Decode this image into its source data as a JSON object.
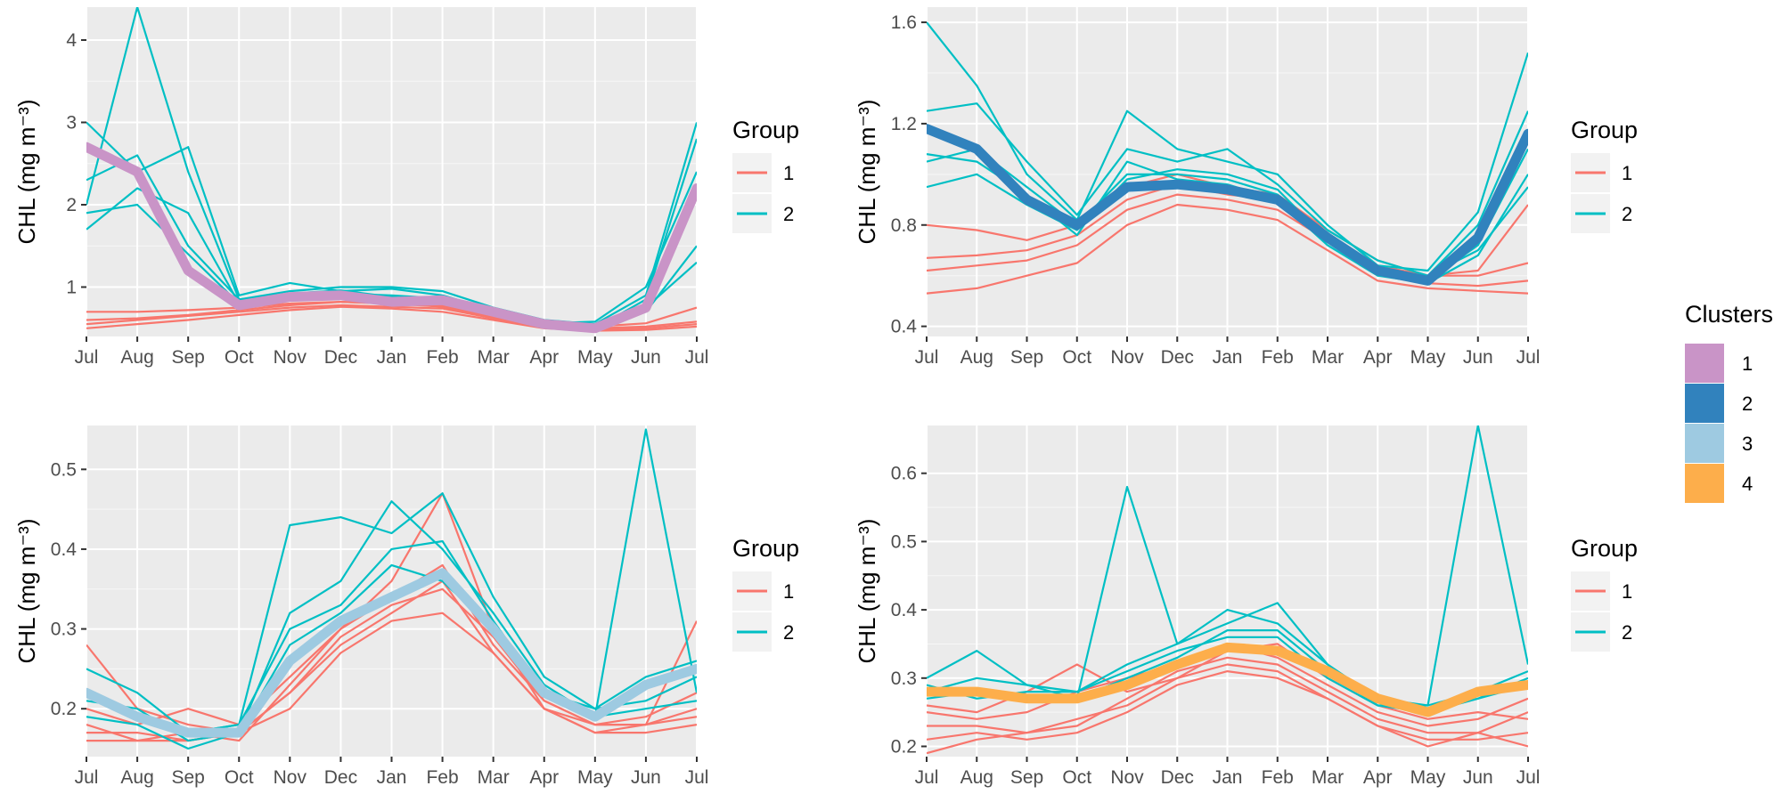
{
  "chart_data": [
    {
      "type": "line",
      "panel": "top-left",
      "ylabel": "CHL (mg m⁻³)",
      "x_categories": [
        "Jul",
        "Aug",
        "Sep",
        "Oct",
        "Nov",
        "Dec",
        "Jan",
        "Feb",
        "Mar",
        "Apr",
        "May",
        "Jun",
        "Jul"
      ],
      "ylim": [
        0.4,
        4.4
      ],
      "yticks": [
        1,
        2,
        3,
        4
      ],
      "cluster": "1",
      "cluster_mean": [
        2.7,
        2.4,
        1.2,
        0.78,
        0.88,
        0.9,
        0.82,
        0.84,
        0.7,
        0.55,
        0.5,
        0.75,
        2.2
      ],
      "series": [
        {
          "group": "1",
          "values": [
            0.55,
            0.6,
            0.65,
            0.7,
            0.75,
            0.78,
            0.76,
            0.74,
            0.62,
            0.52,
            0.48,
            0.5,
            0.55
          ]
        },
        {
          "group": "1",
          "values": [
            0.6,
            0.62,
            0.66,
            0.72,
            0.78,
            0.82,
            0.8,
            0.76,
            0.64,
            0.54,
            0.5,
            0.52,
            0.58
          ]
        },
        {
          "group": "1",
          "values": [
            0.5,
            0.55,
            0.6,
            0.66,
            0.72,
            0.76,
            0.74,
            0.7,
            0.6,
            0.5,
            0.47,
            0.48,
            0.52
          ]
        },
        {
          "group": "1",
          "values": [
            0.7,
            0.7,
            0.72,
            0.75,
            0.8,
            0.82,
            0.8,
            0.78,
            0.66,
            0.56,
            0.52,
            0.56,
            0.75
          ]
        },
        {
          "group": "2",
          "values": [
            2.0,
            4.4,
            2.4,
            0.85,
            0.95,
            1.0,
            1.0,
            0.95,
            0.75,
            0.6,
            0.55,
            0.9,
            3.0
          ]
        },
        {
          "group": "2",
          "values": [
            3.0,
            2.4,
            2.7,
            0.9,
            1.05,
            0.95,
            0.98,
            0.9,
            0.72,
            0.56,
            0.58,
            1.0,
            2.4
          ]
        },
        {
          "group": "2",
          "values": [
            1.7,
            2.2,
            1.9,
            0.8,
            0.9,
            0.92,
            0.9,
            0.86,
            0.7,
            0.55,
            0.52,
            0.7,
            1.5
          ]
        },
        {
          "group": "2",
          "values": [
            2.3,
            2.6,
            1.5,
            0.85,
            0.92,
            0.96,
            0.88,
            0.82,
            0.68,
            0.58,
            0.5,
            0.85,
            2.8
          ]
        },
        {
          "group": "2",
          "values": [
            1.9,
            2.0,
            1.4,
            0.8,
            0.88,
            0.9,
            0.86,
            0.84,
            0.66,
            0.54,
            0.55,
            0.75,
            1.3
          ]
        }
      ],
      "legend": {
        "title": "Group",
        "entries": [
          {
            "label": "1",
            "color": "#f8766d"
          },
          {
            "label": "2",
            "color": "#00bfc4"
          }
        ]
      }
    },
    {
      "type": "line",
      "panel": "top-right",
      "ylabel": "CHL (mg m⁻³)",
      "x_categories": [
        "Jul",
        "Aug",
        "Sep",
        "Oct",
        "Nov",
        "Dec",
        "Jan",
        "Feb",
        "Mar",
        "Apr",
        "May",
        "Jun",
        "Jul"
      ],
      "ylim": [
        0.36,
        1.66
      ],
      "yticks": [
        0.4,
        0.8,
        1.2,
        1.6
      ],
      "cluster": "2",
      "cluster_mean": [
        1.18,
        1.1,
        0.9,
        0.8,
        0.95,
        0.96,
        0.94,
        0.9,
        0.75,
        0.62,
        0.58,
        0.75,
        1.16
      ],
      "series": [
        {
          "group": "1",
          "values": [
            0.53,
            0.55,
            0.6,
            0.65,
            0.8,
            0.88,
            0.86,
            0.82,
            0.7,
            0.58,
            0.55,
            0.54,
            0.53
          ]
        },
        {
          "group": "1",
          "values": [
            0.62,
            0.64,
            0.66,
            0.72,
            0.86,
            0.92,
            0.9,
            0.86,
            0.74,
            0.62,
            0.57,
            0.56,
            0.58
          ]
        },
        {
          "group": "1",
          "values": [
            0.67,
            0.68,
            0.7,
            0.76,
            0.9,
            0.96,
            0.92,
            0.9,
            0.76,
            0.64,
            0.6,
            0.6,
            0.65
          ]
        },
        {
          "group": "1",
          "values": [
            0.8,
            0.78,
            0.74,
            0.8,
            0.95,
            1.0,
            0.95,
            0.92,
            0.78,
            0.66,
            0.6,
            0.62,
            0.88
          ]
        },
        {
          "group": "2",
          "values": [
            1.6,
            1.35,
            1.0,
            0.82,
            1.25,
            1.1,
            1.05,
            1.0,
            0.8,
            0.64,
            0.62,
            0.85,
            1.48
          ]
        },
        {
          "group": "2",
          "values": [
            1.25,
            1.28,
            1.05,
            0.84,
            1.1,
            1.05,
            1.1,
            0.96,
            0.78,
            0.66,
            0.6,
            0.8,
            1.25
          ]
        },
        {
          "group": "2",
          "values": [
            1.05,
            1.1,
            0.95,
            0.8,
            1.0,
            1.0,
            0.98,
            0.92,
            0.76,
            0.62,
            0.58,
            0.72,
            1.1
          ]
        },
        {
          "group": "2",
          "values": [
            0.95,
            1.0,
            0.88,
            0.78,
            0.98,
            1.02,
            1.0,
            0.94,
            0.74,
            0.6,
            0.6,
            0.7,
            0.95
          ]
        },
        {
          "group": "2",
          "values": [
            1.08,
            1.05,
            0.92,
            0.76,
            1.05,
            0.98,
            0.96,
            0.9,
            0.72,
            0.6,
            0.57,
            0.68,
            1.0
          ]
        }
      ],
      "legend": {
        "title": "Group",
        "entries": [
          {
            "label": "1",
            "color": "#f8766d"
          },
          {
            "label": "2",
            "color": "#00bfc4"
          }
        ]
      }
    },
    {
      "type": "line",
      "panel": "bottom-left",
      "ylabel": "CHL (mg m⁻³)",
      "x_categories": [
        "Jul",
        "Aug",
        "Sep",
        "Oct",
        "Nov",
        "Dec",
        "Jan",
        "Feb",
        "Mar",
        "Apr",
        "May",
        "Jun",
        "Jul"
      ],
      "ylim": [
        0.14,
        0.555
      ],
      "yticks": [
        0.2,
        0.3,
        0.4,
        0.5
      ],
      "cluster": "3",
      "cluster_mean": [
        0.22,
        0.19,
        0.17,
        0.17,
        0.26,
        0.31,
        0.34,
        0.37,
        0.3,
        0.22,
        0.19,
        0.23,
        0.25
      ],
      "series": [
        {
          "group": "1",
          "values": [
            0.28,
            0.2,
            0.18,
            0.17,
            0.22,
            0.28,
            0.32,
            0.36,
            0.27,
            0.2,
            0.18,
            0.18,
            0.31
          ]
        },
        {
          "group": "1",
          "values": [
            0.2,
            0.18,
            0.2,
            0.18,
            0.24,
            0.3,
            0.34,
            0.38,
            0.28,
            0.21,
            0.18,
            0.19,
            0.22
          ]
        },
        {
          "group": "1",
          "values": [
            0.18,
            0.16,
            0.17,
            0.16,
            0.23,
            0.3,
            0.36,
            0.47,
            0.3,
            0.2,
            0.17,
            0.18,
            0.19
          ]
        },
        {
          "group": "1",
          "values": [
            0.17,
            0.17,
            0.16,
            0.17,
            0.22,
            0.29,
            0.33,
            0.35,
            0.29,
            0.21,
            0.18,
            0.18,
            0.2
          ]
        },
        {
          "group": "1",
          "values": [
            0.16,
            0.16,
            0.16,
            0.17,
            0.2,
            0.27,
            0.31,
            0.32,
            0.27,
            0.2,
            0.17,
            0.17,
            0.18
          ]
        },
        {
          "group": "2",
          "values": [
            0.25,
            0.22,
            0.17,
            0.18,
            0.43,
            0.44,
            0.42,
            0.47,
            0.34,
            0.24,
            0.2,
            0.24,
            0.26
          ]
        },
        {
          "group": "2",
          "values": [
            0.21,
            0.2,
            0.16,
            0.17,
            0.32,
            0.36,
            0.46,
            0.4,
            0.32,
            0.23,
            0.19,
            0.55,
            0.22
          ]
        },
        {
          "group": "2",
          "values": [
            0.22,
            0.19,
            0.17,
            0.18,
            0.3,
            0.33,
            0.4,
            0.41,
            0.31,
            0.22,
            0.2,
            0.21,
            0.24
          ]
        },
        {
          "group": "2",
          "values": [
            0.19,
            0.18,
            0.15,
            0.17,
            0.28,
            0.32,
            0.38,
            0.36,
            0.3,
            0.22,
            0.19,
            0.2,
            0.21
          ]
        }
      ],
      "legend": {
        "title": "Group",
        "entries": [
          {
            "label": "1",
            "color": "#f8766d"
          },
          {
            "label": "2",
            "color": "#00bfc4"
          }
        ]
      }
    },
    {
      "type": "line",
      "panel": "bottom-right",
      "ylabel": "CHL (mg m⁻³)",
      "x_categories": [
        "Jul",
        "Aug",
        "Sep",
        "Oct",
        "Nov",
        "Dec",
        "Jan",
        "Feb",
        "Mar",
        "Apr",
        "May",
        "Jun",
        "Jul"
      ],
      "ylim": [
        0.185,
        0.67
      ],
      "yticks": [
        0.2,
        0.3,
        0.4,
        0.5,
        0.6
      ],
      "cluster": "4",
      "cluster_mean": [
        0.28,
        0.28,
        0.27,
        0.27,
        0.29,
        0.32,
        0.345,
        0.34,
        0.31,
        0.27,
        0.25,
        0.28,
        0.29
      ],
      "series": [
        {
          "group": "1",
          "values": [
            0.21,
            0.22,
            0.21,
            0.22,
            0.25,
            0.29,
            0.31,
            0.3,
            0.27,
            0.23,
            0.21,
            0.21,
            0.22
          ]
        },
        {
          "group": "1",
          "values": [
            0.23,
            0.23,
            0.22,
            0.23,
            0.27,
            0.31,
            0.33,
            0.32,
            0.28,
            0.24,
            0.22,
            0.22,
            0.25
          ]
        },
        {
          "group": "1",
          "values": [
            0.19,
            0.21,
            0.22,
            0.24,
            0.26,
            0.3,
            0.32,
            0.31,
            0.27,
            0.23,
            0.2,
            0.22,
            0.2
          ]
        },
        {
          "group": "1",
          "values": [
            0.25,
            0.24,
            0.25,
            0.28,
            0.3,
            0.32,
            0.35,
            0.33,
            0.29,
            0.25,
            0.23,
            0.24,
            0.27
          ]
        },
        {
          "group": "1",
          "values": [
            0.26,
            0.25,
            0.28,
            0.32,
            0.28,
            0.3,
            0.34,
            0.35,
            0.3,
            0.26,
            0.24,
            0.25,
            0.24
          ]
        },
        {
          "group": "2",
          "values": [
            0.3,
            0.34,
            0.29,
            0.27,
            0.58,
            0.35,
            0.4,
            0.38,
            0.32,
            0.27,
            0.26,
            0.67,
            0.32
          ]
        },
        {
          "group": "2",
          "values": [
            0.28,
            0.3,
            0.29,
            0.28,
            0.32,
            0.35,
            0.38,
            0.41,
            0.32,
            0.27,
            0.25,
            0.27,
            0.3
          ]
        },
        {
          "group": "2",
          "values": [
            0.27,
            0.28,
            0.27,
            0.27,
            0.3,
            0.33,
            0.37,
            0.37,
            0.31,
            0.26,
            0.25,
            0.27,
            0.29
          ]
        },
        {
          "group": "2",
          "values": [
            0.29,
            0.27,
            0.28,
            0.28,
            0.31,
            0.34,
            0.36,
            0.36,
            0.3,
            0.26,
            0.26,
            0.28,
            0.31
          ]
        }
      ],
      "legend": {
        "title": "Group",
        "entries": [
          {
            "label": "1",
            "color": "#f8766d"
          },
          {
            "label": "2",
            "color": "#00bfc4"
          }
        ]
      }
    }
  ],
  "clusters_legend": {
    "title": "Clusters",
    "entries": [
      {
        "label": "1",
        "color": "#c994c7"
      },
      {
        "label": "2",
        "color": "#3182bd"
      },
      {
        "label": "3",
        "color": "#9ecae1"
      },
      {
        "label": "4",
        "color": "#fdae4b"
      }
    ]
  },
  "colors": {
    "group1": "#f8766d",
    "group2": "#00bfc4",
    "panel_bg": "#ebebeb",
    "grid": "#ffffff"
  }
}
